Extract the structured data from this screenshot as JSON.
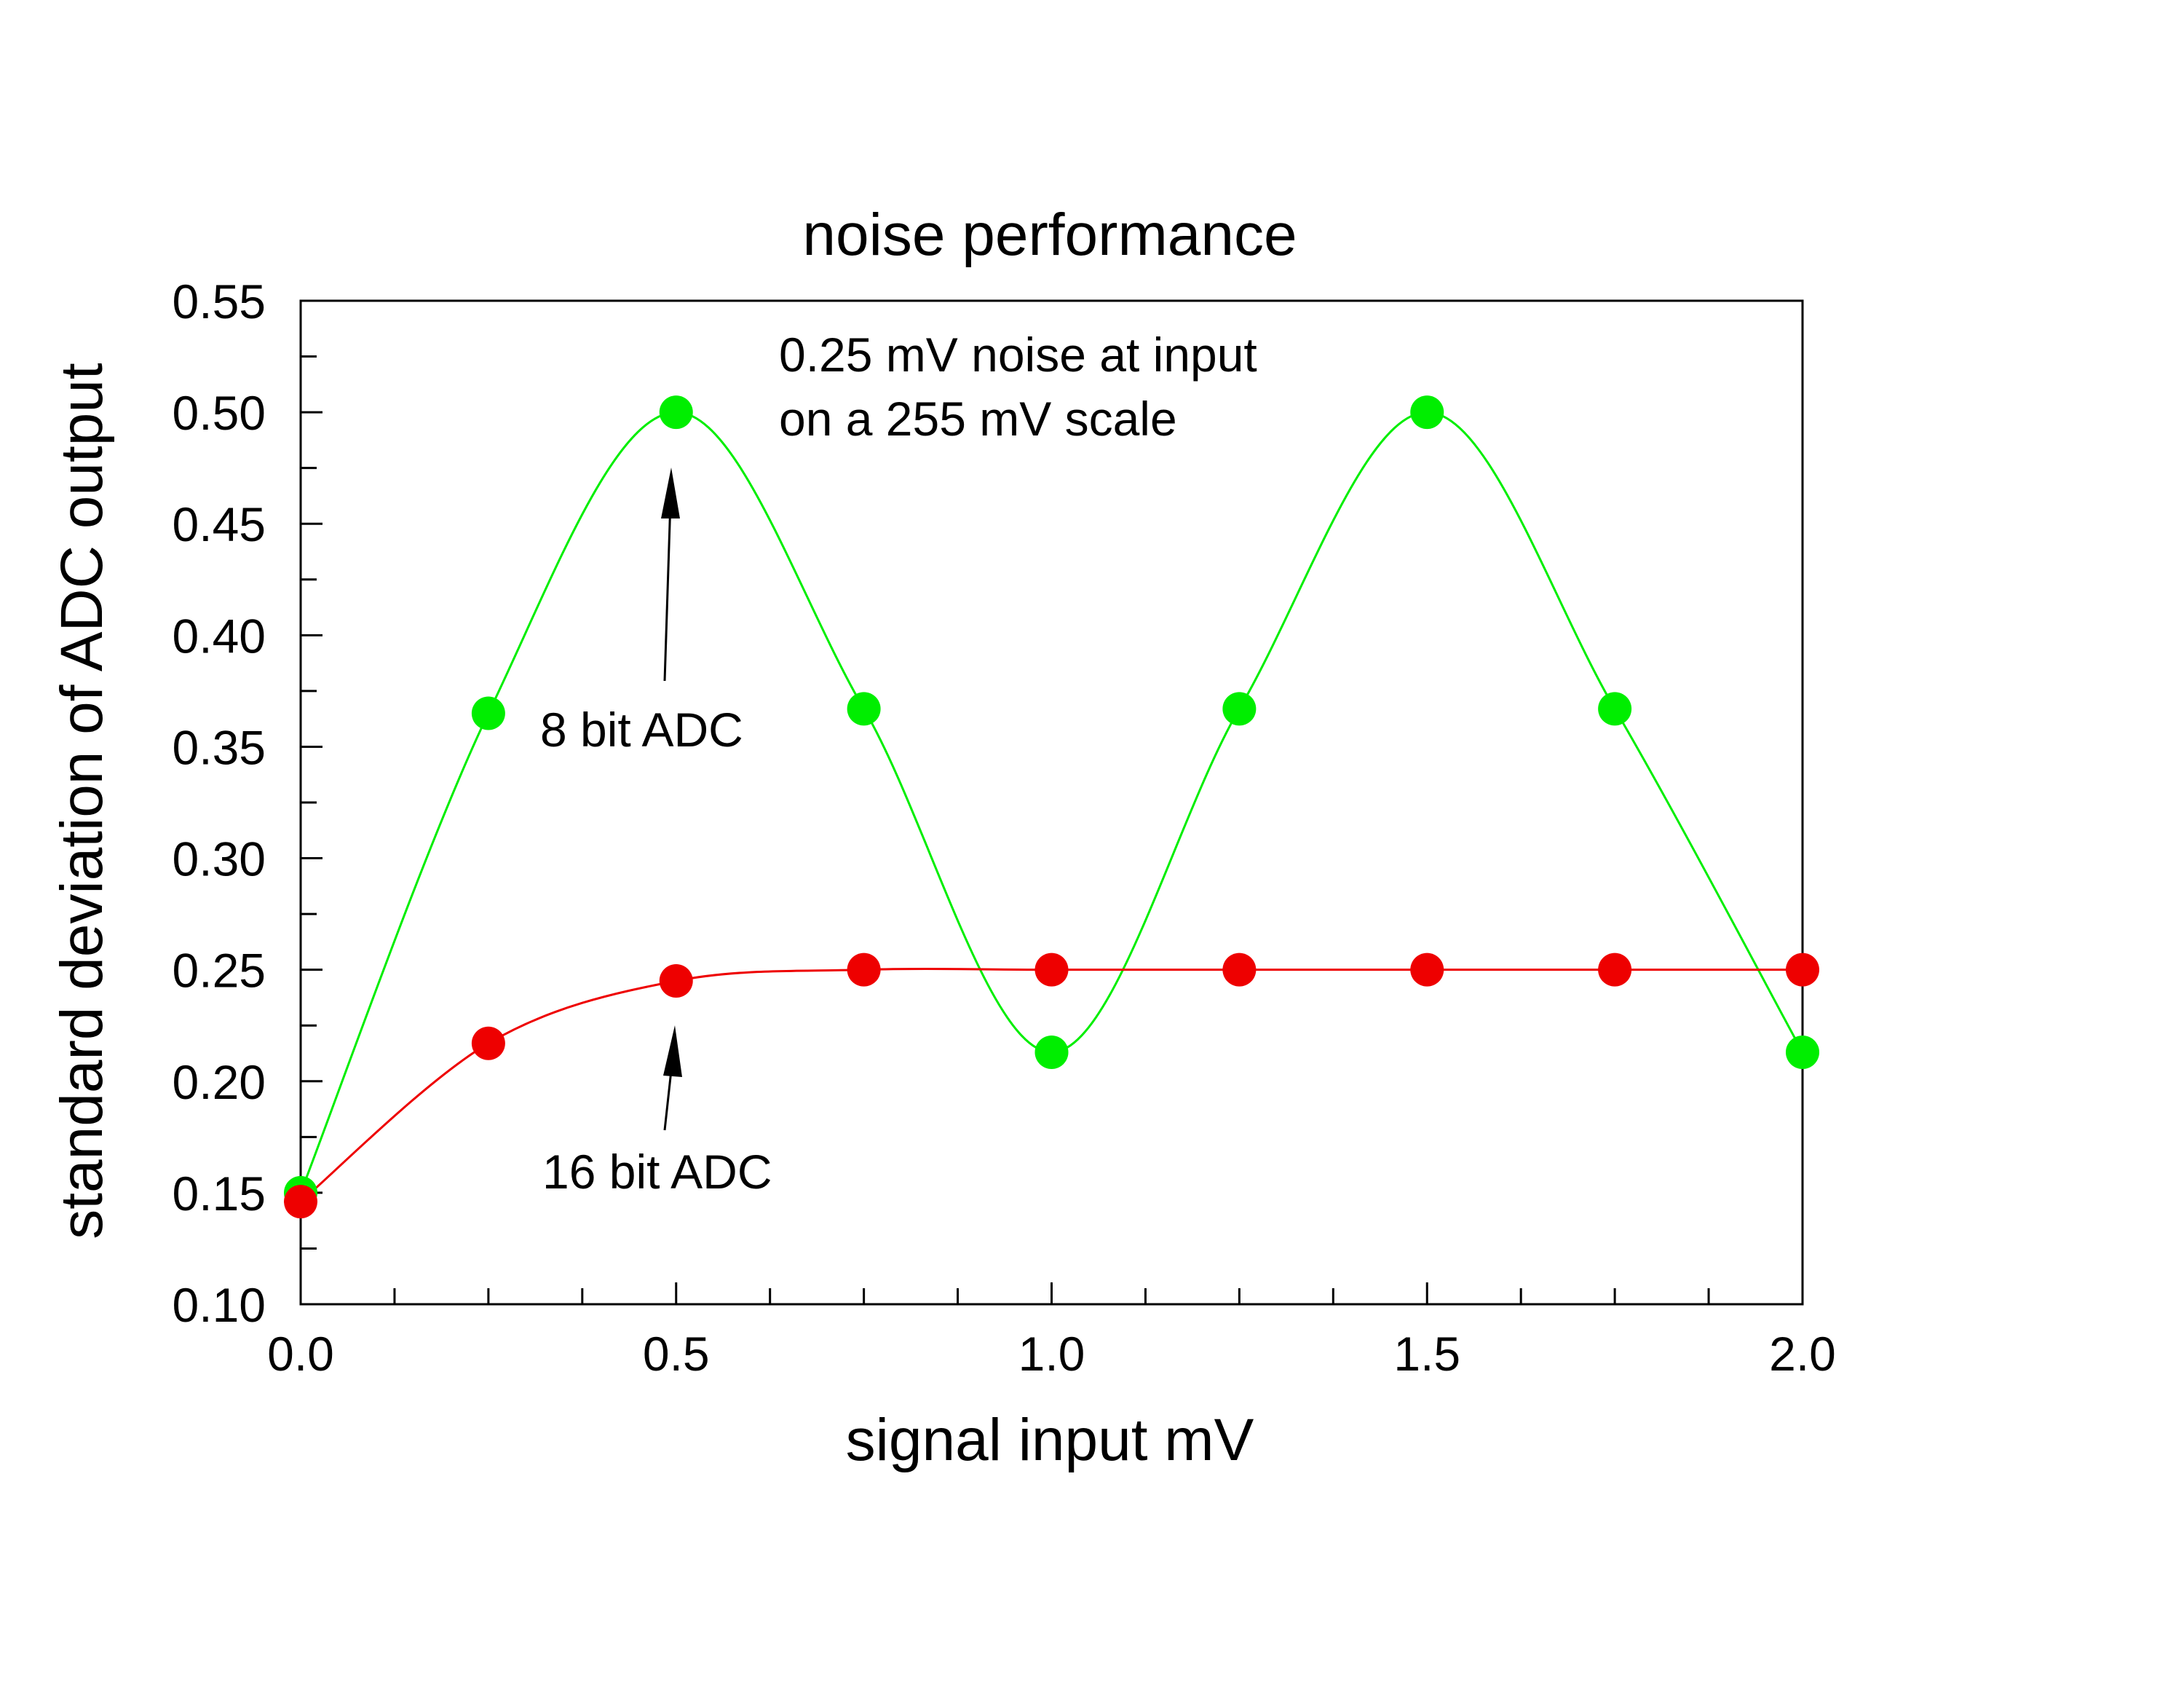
{
  "chart_data": {
    "type": "scatter",
    "title": "noise performance",
    "xlabel": "signal input mV",
    "ylabel": "standard deviation of ADC output",
    "xlim": [
      0.0,
      2.0
    ],
    "ylim": [
      0.1,
      0.55
    ],
    "x_ticks": [
      "0.0",
      "0.5",
      "1.0",
      "1.5",
      "2.0"
    ],
    "y_ticks": [
      "0.10",
      "0.15",
      "0.20",
      "0.25",
      "0.30",
      "0.35",
      "0.40",
      "0.45",
      "0.50",
      "0.55"
    ],
    "grid": false,
    "series": [
      {
        "name": "8 bit ADC",
        "color": "#00ee00",
        "x": [
          0.0,
          0.25,
          0.5,
          0.75,
          1.0,
          1.25,
          1.5,
          1.75,
          2.0
        ],
        "y": [
          0.15,
          0.365,
          0.5,
          0.367,
          0.213,
          0.367,
          0.5,
          0.367,
          0.213
        ]
      },
      {
        "name": "16 bit ADC",
        "color": "#ee0000",
        "x": [
          0.0,
          0.25,
          0.5,
          0.75,
          1.0,
          1.25,
          1.5,
          1.75,
          2.0
        ],
        "y": [
          0.146,
          0.217,
          0.245,
          0.25,
          0.25,
          0.25,
          0.25,
          0.25,
          0.25
        ]
      }
    ],
    "annotations": [
      {
        "text": "0.25 mV noise at input",
        "line": 1
      },
      {
        "text": "on a 255 mV scale",
        "line": 2
      }
    ]
  }
}
